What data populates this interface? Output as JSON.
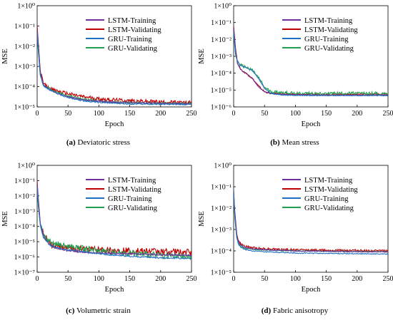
{
  "chart_data": [
    {
      "type": "line",
      "panel_letter": "(a)",
      "caption": "Deviatoric stress",
      "xlabel": "Epoch",
      "ylabel": "MSE",
      "xlim": [
        0,
        250
      ],
      "xticks": [
        0,
        50,
        100,
        150,
        200,
        250
      ],
      "y_scale": "log",
      "ylim_exp": [
        -5,
        0
      ],
      "ytick_labels": [
        "1×10⁰",
        "1×10⁻¹",
        "1×10⁻²",
        "1×10⁻³",
        "1×10⁻⁴",
        "1×10⁻⁵"
      ],
      "legend_position": "top-right",
      "series": [
        {
          "name": "LSTM-Training",
          "color": "#7030a0",
          "x": [
            0,
            2,
            5,
            10,
            20,
            30,
            50,
            75,
            100,
            150,
            200,
            250
          ],
          "log10_y": [
            -1.2,
            -2.0,
            -3.3,
            -3.9,
            -4.15,
            -4.3,
            -4.5,
            -4.65,
            -4.72,
            -4.8,
            -4.82,
            -4.85
          ],
          "noise": 0.03
        },
        {
          "name": "LSTM-Validating",
          "color": "#c00000",
          "x": [
            0,
            2,
            5,
            10,
            20,
            30,
            50,
            75,
            100,
            150,
            200,
            250
          ],
          "log10_y": [
            -1.0,
            -1.9,
            -3.2,
            -3.85,
            -4.1,
            -4.2,
            -4.35,
            -4.5,
            -4.6,
            -4.7,
            -4.75,
            -4.8
          ],
          "noise": 0.09
        },
        {
          "name": "GRU-Training",
          "color": "#1f6fbf",
          "x": [
            0,
            2,
            5,
            10,
            20,
            30,
            50,
            75,
            100,
            150,
            200,
            250
          ],
          "log10_y": [
            -1.3,
            -2.2,
            -3.4,
            -3.95,
            -4.15,
            -4.3,
            -4.55,
            -4.7,
            -4.78,
            -4.85,
            -4.87,
            -4.88
          ],
          "noise": 0.03
        },
        {
          "name": "GRU-Validating",
          "color": "#20a050",
          "x": [
            0,
            2,
            5,
            10,
            20,
            30,
            50,
            75,
            100,
            150,
            200,
            250
          ],
          "log10_y": [
            -1.4,
            -2.3,
            -3.4,
            -3.95,
            -4.1,
            -4.25,
            -4.45,
            -4.6,
            -4.72,
            -4.8,
            -4.82,
            -4.83
          ],
          "noise": 0.05
        }
      ]
    },
    {
      "type": "line",
      "panel_letter": "(b)",
      "caption": "Mean stress",
      "xlabel": "Epoch",
      "ylabel": "MSE",
      "xlim": [
        0,
        250
      ],
      "xticks": [
        0,
        50,
        100,
        150,
        200,
        250
      ],
      "y_scale": "log",
      "ylim_exp": [
        -6,
        0
      ],
      "ytick_labels": [
        "1×10⁰",
        "1×10⁻¹",
        "1×10⁻²",
        "1×10⁻³",
        "1×10⁻⁴",
        "1×10⁻⁵",
        "1×10⁻⁶"
      ],
      "legend_position": "top-right",
      "series": [
        {
          "name": "LSTM-Training",
          "color": "#7030a0",
          "x": [
            0,
            3,
            6,
            10,
            15,
            20,
            30,
            40,
            50,
            60,
            80,
            100,
            150,
            200,
            250
          ],
          "log10_y": [
            -1.3,
            -2.6,
            -3.4,
            -3.7,
            -3.9,
            -4.0,
            -4.3,
            -4.8,
            -5.1,
            -5.2,
            -5.25,
            -5.28,
            -5.3,
            -5.3,
            -5.3
          ],
          "noise": 0.02
        },
        {
          "name": "LSTM-Validating",
          "color": "#c00000",
          "x": [
            0,
            3,
            6,
            10,
            15,
            20,
            30,
            40,
            50,
            60,
            80,
            100,
            150,
            200,
            250
          ],
          "log10_y": [
            -1.2,
            -2.5,
            -3.35,
            -3.7,
            -3.9,
            -4.0,
            -4.3,
            -4.75,
            -5.1,
            -5.2,
            -5.22,
            -5.25,
            -5.25,
            -5.25,
            -5.25
          ],
          "noise": 0.05
        },
        {
          "name": "GRU-Training",
          "color": "#1f6fbf",
          "x": [
            0,
            3,
            6,
            10,
            15,
            20,
            30,
            40,
            50,
            60,
            80,
            100,
            150,
            200,
            250
          ],
          "log10_y": [
            -1.5,
            -2.8,
            -3.3,
            -3.5,
            -3.6,
            -3.65,
            -3.85,
            -4.3,
            -4.9,
            -5.2,
            -5.3,
            -5.32,
            -5.33,
            -5.33,
            -5.33
          ],
          "noise": 0.02
        },
        {
          "name": "GRU-Validating",
          "color": "#20a050",
          "x": [
            0,
            3,
            6,
            10,
            15,
            20,
            30,
            40,
            50,
            60,
            80,
            100,
            150,
            200,
            250
          ],
          "log10_y": [
            -1.6,
            -2.9,
            -3.3,
            -3.5,
            -3.6,
            -3.65,
            -3.8,
            -4.25,
            -4.85,
            -5.1,
            -5.15,
            -5.2,
            -5.2,
            -5.2,
            -5.2
          ],
          "noise": 0.09
        }
      ]
    },
    {
      "type": "line",
      "panel_letter": "(c)",
      "caption": "Volumetric strain",
      "xlabel": "Epoch",
      "ylabel": "MSE",
      "xlim": [
        0,
        250
      ],
      "xticks": [
        0,
        50,
        100,
        150,
        200,
        250
      ],
      "y_scale": "log",
      "ylim_exp": [
        -7,
        0
      ],
      "ytick_labels": [
        "1×10⁰",
        "1×10⁻¹",
        "1×10⁻²",
        "1×10⁻³",
        "1×10⁻⁴",
        "1×10⁻⁵",
        "1×10⁻⁶",
        "1×10⁻⁷"
      ],
      "legend_position": "top-right",
      "series": [
        {
          "name": "LSTM-Training",
          "color": "#7030a0",
          "x": [
            0,
            2,
            5,
            10,
            20,
            30,
            50,
            75,
            100,
            150,
            200,
            250
          ],
          "log10_y": [
            -1.2,
            -2.4,
            -3.8,
            -4.6,
            -5.2,
            -5.4,
            -5.6,
            -5.7,
            -5.75,
            -5.8,
            -5.85,
            -5.9
          ],
          "noise": 0.05
        },
        {
          "name": "LSTM-Validating",
          "color": "#c00000",
          "x": [
            0,
            2,
            5,
            10,
            20,
            30,
            50,
            75,
            100,
            150,
            200,
            250
          ],
          "log10_y": [
            -1.0,
            -2.3,
            -3.7,
            -4.5,
            -5.1,
            -5.3,
            -5.45,
            -5.5,
            -5.55,
            -5.6,
            -5.65,
            -5.7
          ],
          "noise": 0.22
        },
        {
          "name": "GRU-Training",
          "color": "#1f6fbf",
          "x": [
            0,
            2,
            5,
            10,
            20,
            30,
            50,
            75,
            100,
            150,
            200,
            250
          ],
          "log10_y": [
            -1.4,
            -2.6,
            -3.9,
            -4.7,
            -5.2,
            -5.4,
            -5.55,
            -5.65,
            -5.8,
            -5.95,
            -6.05,
            -6.1
          ],
          "noise": 0.05
        },
        {
          "name": "GRU-Validating",
          "color": "#20a050",
          "x": [
            0,
            2,
            5,
            10,
            20,
            30,
            50,
            75,
            100,
            150,
            200,
            250
          ],
          "log10_y": [
            -1.5,
            -2.7,
            -3.9,
            -4.6,
            -5.0,
            -5.15,
            -5.3,
            -5.45,
            -5.6,
            -5.75,
            -5.9,
            -6.0
          ],
          "noise": 0.2
        }
      ]
    },
    {
      "type": "line",
      "panel_letter": "(d)",
      "caption": "Fabric anisotropy",
      "xlabel": "Epoch",
      "ylabel": "MSE",
      "xlim": [
        0,
        250
      ],
      "xticks": [
        0,
        50,
        100,
        150,
        200,
        250
      ],
      "y_scale": "log",
      "ylim_exp": [
        -5,
        0
      ],
      "ytick_labels": [
        "1×10⁰",
        "1×10⁻¹",
        "1×10⁻²",
        "1×10⁻³",
        "1×10⁻⁴",
        "1×10⁻⁵"
      ],
      "legend_position": "top-right",
      "series": [
        {
          "name": "LSTM-Training",
          "color": "#7030a0",
          "x": [
            0,
            2,
            5,
            8,
            12,
            20,
            30,
            50,
            100,
            150,
            200,
            250
          ],
          "log10_y": [
            -1.2,
            -2.3,
            -3.3,
            -3.6,
            -3.75,
            -3.85,
            -3.9,
            -3.95,
            -4.0,
            -4.02,
            -4.04,
            -4.05
          ],
          "noise": 0.02
        },
        {
          "name": "LSTM-Validating",
          "color": "#c00000",
          "x": [
            0,
            2,
            5,
            8,
            12,
            20,
            30,
            50,
            100,
            150,
            200,
            250
          ],
          "log10_y": [
            -1.5,
            -2.2,
            -3.2,
            -3.55,
            -3.7,
            -3.8,
            -3.85,
            -3.9,
            -3.95,
            -3.97,
            -3.98,
            -4.0
          ],
          "noise": 0.05
        },
        {
          "name": "GRU-Training",
          "color": "#1f6fbf",
          "x": [
            0,
            2,
            5,
            8,
            12,
            20,
            30,
            50,
            100,
            150,
            200,
            250
          ],
          "log10_y": [
            -1.1,
            -2.4,
            -3.4,
            -3.7,
            -3.85,
            -3.95,
            -4.0,
            -4.05,
            -4.1,
            -4.12,
            -4.13,
            -4.15
          ],
          "noise": 0.02
        },
        {
          "name": "GRU-Validating",
          "color": "#20a050",
          "x": [
            0,
            2,
            5,
            8,
            12,
            20,
            30,
            50,
            100,
            150,
            200,
            250
          ],
          "log10_y": [
            -1.3,
            -2.5,
            -3.35,
            -3.65,
            -3.8,
            -3.88,
            -3.92,
            -3.96,
            -4.0,
            -4.02,
            -4.03,
            -4.04
          ],
          "noise": 0.03
        }
      ]
    }
  ]
}
